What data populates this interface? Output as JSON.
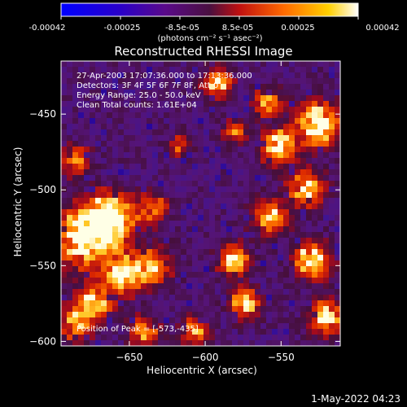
{
  "colorbar": {
    "ticks": [
      "-0.00042",
      "-0.00025",
      "-8.5e-05",
      "8.5e-05",
      "0.00025",
      "0.00042"
    ],
    "units_label": "(photons cm⁻² s⁻¹ asec⁻²)"
  },
  "chart_data": {
    "type": "heatmap",
    "title": "Reconstructed RHESSI Image",
    "xlabel": "Heliocentric X (arcsec)",
    "ylabel": "Heliocentric Y (arcsec)",
    "xlim": [
      -695,
      -511
    ],
    "ylim": [
      -603,
      -415
    ],
    "x_ticks": [
      -650,
      -600,
      -550
    ],
    "y_ticks": [
      -600,
      -550,
      -500,
      -450
    ],
    "value_range": [
      -0.00042,
      0.00042
    ],
    "colormap": "blue-purple-red-orange-yellow-white",
    "peak": [
      -573,
      -435
    ],
    "grid": false,
    "info_lines": [
      "27-Apr-2003 17:07:36.000 to 17:13:36.000",
      "Detectors: 3F 4F 5F 6F 7F 8F, Att 0",
      "Energy Range: 25.0 - 50.0 keV",
      "Clean     Total counts: 1.61E+04"
    ],
    "peak_label": "Position of Peak = [-573,-435]"
  },
  "footer": {
    "date": "1-May-2022 04:23"
  }
}
